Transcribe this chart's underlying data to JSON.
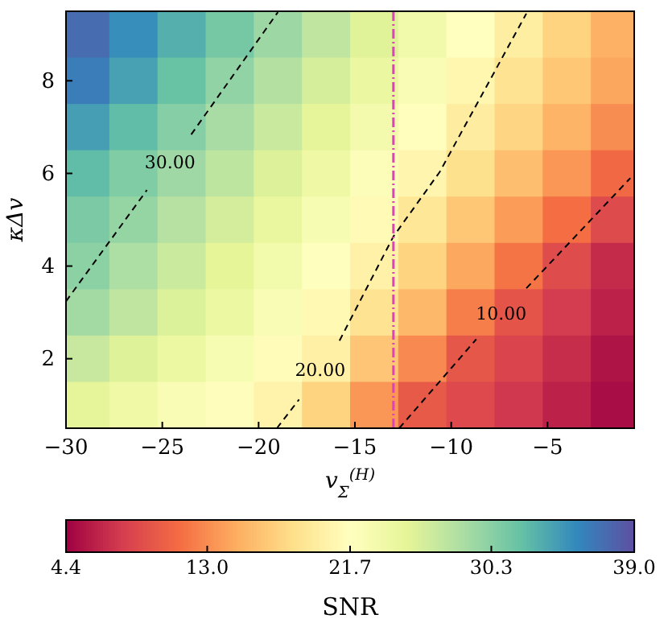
{
  "chart_data": {
    "type": "heatmap",
    "xlabel": "v$_{Σ}$$^{(H)}$",
    "ylabel": "κΔv",
    "clabel": "SNR",
    "x": [
      -29,
      -26.5,
      -24,
      -21.5,
      -19,
      -16.5,
      -14,
      -11.5,
      -9,
      -6.5,
      -4,
      -1.5
    ],
    "y": [
      9,
      8,
      7,
      6,
      5,
      4,
      3,
      2,
      1
    ],
    "cells": [
      [
        37.2,
        35.2,
        33.2,
        31.3,
        29.3,
        27.4,
        25.5,
        23.6,
        21.7,
        19.8,
        17.4,
        15.0
      ],
      [
        36.2,
        34.1,
        32.0,
        29.9,
        28.1,
        26.2,
        24.4,
        22.6,
        20.7,
        18.7,
        16.5,
        14.4
      ],
      [
        34.2,
        32.4,
        30.5,
        28.7,
        26.9,
        25.1,
        23.3,
        21.6,
        19.7,
        17.5,
        15.2,
        13.0
      ],
      [
        32.4,
        30.8,
        29.2,
        27.5,
        25.7,
        24.0,
        22.3,
        20.6,
        18.4,
        15.9,
        13.5,
        11.0
      ],
      [
        31.0,
        29.7,
        28.0,
        26.3,
        24.6,
        22.8,
        21.1,
        19.1,
        16.5,
        13.9,
        11.3,
        8.8
      ],
      [
        30.2,
        28.5,
        26.8,
        25.2,
        23.5,
        21.8,
        20.1,
        17.4,
        14.5,
        11.7,
        8.9,
        6.8
      ],
      [
        29.0,
        27.4,
        25.8,
        24.2,
        22.6,
        21.0,
        18.7,
        15.5,
        12.2,
        9.5,
        7.8,
        6.2
      ],
      [
        27.0,
        25.6,
        24.2,
        22.8,
        21.4,
        20.0,
        16.4,
        12.8,
        9.7,
        8.3,
        6.9,
        5.5
      ],
      [
        25.0,
        23.9,
        22.7,
        21.5,
        20.4,
        17.4,
        13.5,
        9.9,
        8.7,
        7.5,
        6.3,
        5.1
      ]
    ],
    "colors": [
      "#9e0142",
      "#d53e4f",
      "#f46d43",
      "#fdae61",
      "#fee08b",
      "#ffffbf",
      "#e6f598",
      "#abdda4",
      "#66c2a5",
      "#3288bd",
      "#5e4fa2"
    ],
    "clim": [
      4.4,
      39
    ],
    "cticks": [
      4.4,
      {
        "value": 13,
        "label": "13.0"
      },
      21.7,
      30.3,
      {
        "value": 39,
        "label": "39.0"
      }
    ],
    "xlim": [
      -30,
      -0.5
    ],
    "ylim": [
      0.5,
      9.5
    ],
    "xticks": [
      {
        "value": -30,
        "label": "−30"
      },
      {
        "value": -25,
        "label": "−25"
      },
      {
        "value": -20,
        "label": "−20"
      },
      {
        "value": -15,
        "label": "−15"
      },
      {
        "value": -10,
        "label": "−10"
      },
      {
        "value": -5,
        "label": "−5"
      }
    ],
    "yticks": [
      2,
      4,
      6,
      8
    ],
    "series": [
      {
        "type": "line",
        "name": "30.00",
        "color": "#000000",
        "line_style": "dashed",
        "x": [
          -30,
          -25.8,
          -24.6,
          -23.5,
          -19.0
        ],
        "values": [
          3.24,
          5.64,
          null,
          6.84,
          9.48
        ]
      },
      {
        "type": "line",
        "name": "20.00",
        "color": "#000000",
        "line_style": "dashed",
        "x": [
          -19.05,
          -17.9,
          -16.8,
          -15.8,
          -13.0,
          -10.6,
          -6.1
        ],
        "values": [
          0.5,
          1.12,
          null,
          2.39,
          4.64,
          6.03,
          9.45
        ]
      },
      {
        "type": "line",
        "name": "10.00",
        "color": "#000000",
        "line_style": "dashed",
        "x": [
          -12.7,
          -8.7,
          -7.4,
          -6.1,
          -0.7
        ],
        "values": [
          0.5,
          2.42,
          null,
          3.52,
          5.9
        ]
      }
    ],
    "ref_lines": [
      {
        "axis": "x",
        "value": -13,
        "color": "#e040c0",
        "line_style": "dashdot"
      }
    ]
  }
}
